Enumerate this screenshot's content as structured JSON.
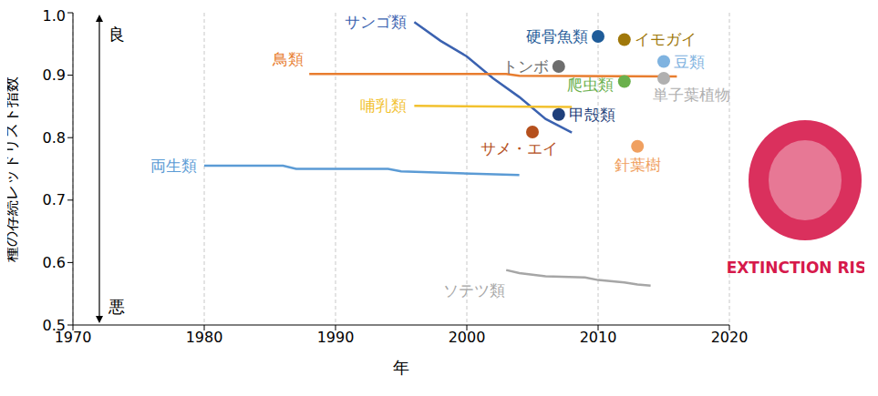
{
  "chart_data": {
    "type": "line",
    "x_label": "年",
    "y_label": "種の存続レッドリスト指数",
    "xlim": [
      1970,
      2020
    ],
    "xticks": [
      1970,
      1980,
      1990,
      2000,
      2010,
      2020
    ],
    "ylim": [
      0.5,
      1
    ],
    "yticks": [
      0.5,
      0.6,
      0.7,
      0.8,
      0.9,
      {
        "value": 1,
        "label": "1.0"
      }
    ],
    "grid": "x",
    "annotations": {
      "good": "良",
      "bad": "悪",
      "logo": "EXTINCTION RISK"
    },
    "series": [
      {
        "name": "サンゴ類",
        "type": "line",
        "color": "#3b62b0",
        "x": [
          1996,
          1998,
          2000,
          2002,
          2004,
          2006,
          2008
        ],
        "values": [
          0.985,
          0.955,
          0.93,
          0.895,
          0.865,
          0.83,
          0.808
        ]
      },
      {
        "name": "鳥類",
        "type": "line",
        "color": "#e87d2f",
        "x": [
          1988,
          2003,
          2004,
          2016
        ],
        "values": [
          0.902,
          0.902,
          0.899,
          0.898
        ]
      },
      {
        "name": "哺乳類",
        "type": "line",
        "color": "#f2c12e",
        "x": [
          1996,
          2008
        ],
        "values": [
          0.851,
          0.849
        ]
      },
      {
        "name": "両生類",
        "type": "line",
        "color": "#5b9bd5",
        "x": [
          1980,
          1986,
          1987,
          1994,
          1995,
          2004
        ],
        "values": [
          0.755,
          0.755,
          0.75,
          0.75,
          0.746,
          0.74
        ]
      },
      {
        "name": "ソテツ類",
        "type": "line",
        "color": "#a6a6a6",
        "x": [
          2003,
          2004,
          2006,
          2009,
          2010,
          2012,
          2013,
          2014
        ],
        "values": [
          0.588,
          0.583,
          0.578,
          0.576,
          0.572,
          0.568,
          0.565,
          0.563
        ]
      },
      {
        "name": "硬骨魚類",
        "type": "scatter",
        "color": "#1f5c99",
        "x": [
          2010
        ],
        "values": [
          0.962
        ]
      },
      {
        "name": "イモガイ",
        "type": "scatter",
        "color": "#a0780a",
        "x": [
          2012
        ],
        "values": [
          0.957
        ]
      },
      {
        "name": "トンボ",
        "type": "scatter",
        "color": "#6e6e6e",
        "x": [
          2007
        ],
        "values": [
          0.914
        ]
      },
      {
        "name": "豆類",
        "type": "scatter",
        "color": "#7fb3e0",
        "x": [
          2015
        ],
        "values": [
          0.922
        ]
      },
      {
        "name": "単子葉植物",
        "type": "scatter",
        "color": "#b0b0b0",
        "x": [
          2015
        ],
        "values": [
          0.895
        ]
      },
      {
        "name": "爬虫類",
        "type": "scatter",
        "color": "#6ab04c",
        "x": [
          2012
        ],
        "values": [
          0.89
        ]
      },
      {
        "name": "甲殻類",
        "type": "scatter",
        "color": "#1f3f7a",
        "x": [
          2007
        ],
        "values": [
          0.837
        ]
      },
      {
        "name": "サメ・エイ",
        "type": "scatter",
        "color": "#b5501d",
        "x": [
          2005
        ],
        "values": [
          0.809
        ]
      },
      {
        "name": "針葉樹",
        "type": "scatter",
        "color": "#f0a060",
        "x": [
          2013
        ],
        "values": [
          0.786
        ]
      }
    ]
  }
}
